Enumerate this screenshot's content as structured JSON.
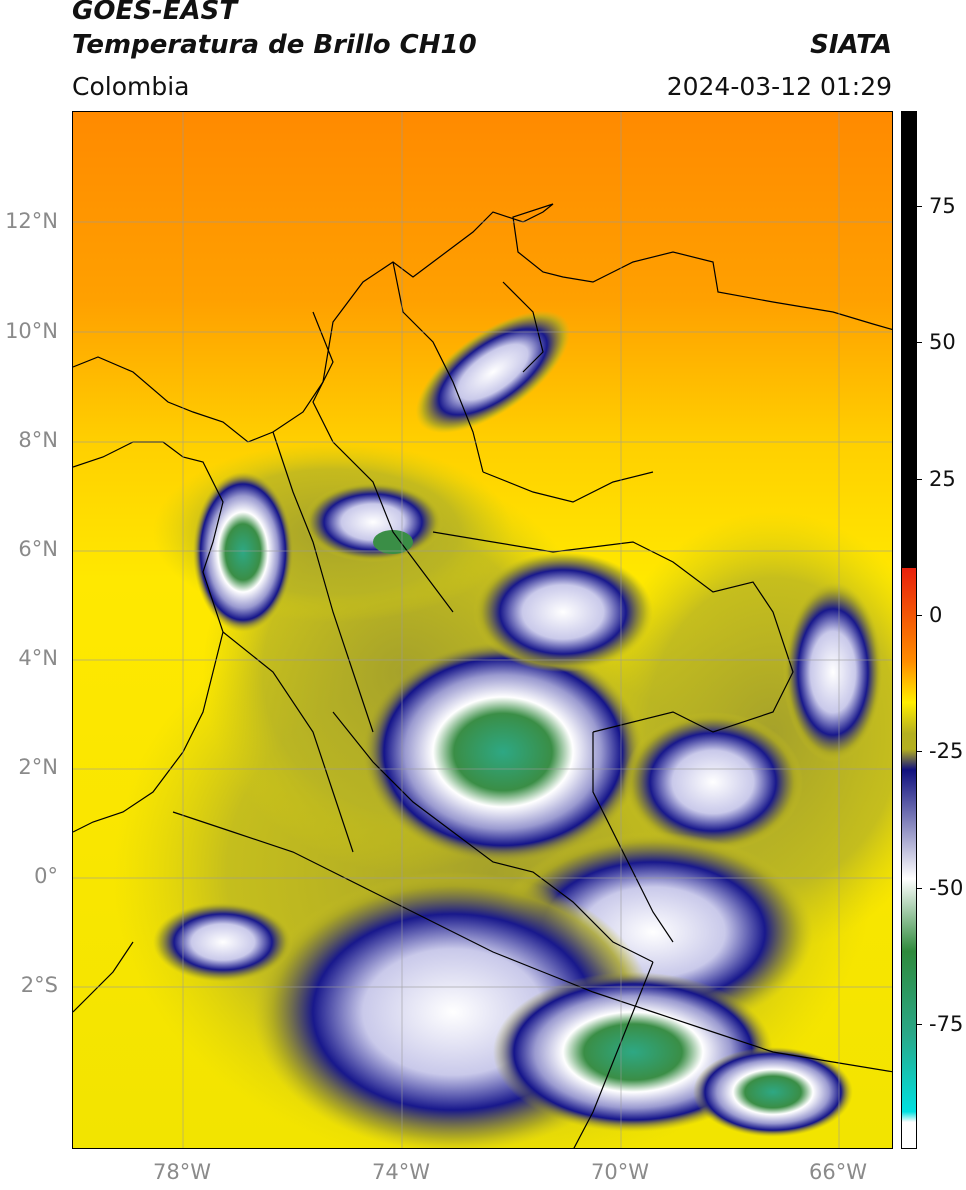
{
  "header": {
    "title_line1": "GOES-EAST",
    "title_line2": "Temperatura de Brillo CH10",
    "organization": "SIATA",
    "region": "Colombia",
    "timestamp": "2024-03-12 01:29"
  },
  "map": {
    "latitude_labels": [
      "12°N",
      "10°N",
      "8°N",
      "6°N",
      "4°N",
      "2°N",
      "0°",
      "2°S"
    ],
    "longitude_labels": [
      "78°W",
      "74°W",
      "70°W",
      "66°W"
    ],
    "grid": true,
    "borders": "black country and department boundaries",
    "field": "brightness temperature CH10"
  },
  "colorbar": {
    "tick_labels": [
      "75",
      "50",
      "25",
      "0",
      "-25",
      "-50",
      "-75"
    ],
    "colors": {
      "warm_black": "#000000",
      "red": "#e8200c",
      "orange": "#ff8c00",
      "yellow": "#ffee00",
      "olive": "#b4b020",
      "navy": "#10107e",
      "white": "#ffffff",
      "green": "#2f8a3c",
      "teal": "#2aa888",
      "cyan": "#00e0e0"
    }
  }
}
